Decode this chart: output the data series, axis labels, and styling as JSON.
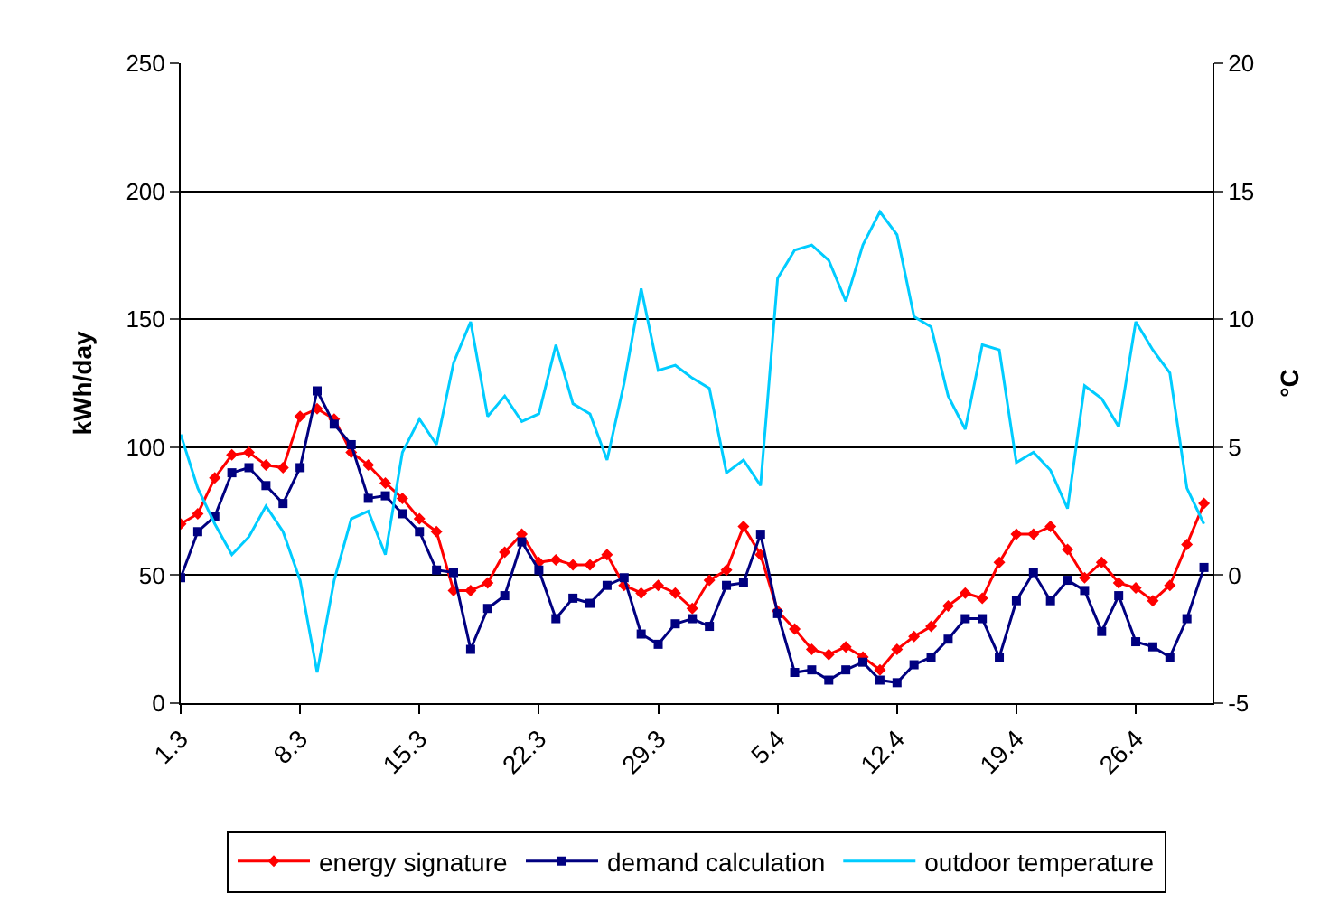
{
  "chart_data": {
    "type": "line",
    "categories": [
      "1.3",
      null,
      null,
      null,
      null,
      null,
      null,
      "8.3",
      null,
      null,
      null,
      null,
      null,
      null,
      "15.3",
      null,
      null,
      null,
      null,
      null,
      null,
      "22.3",
      null,
      null,
      null,
      null,
      null,
      null,
      "29.3",
      null,
      null,
      null,
      null,
      null,
      null,
      "5.4",
      null,
      null,
      null,
      null,
      null,
      null,
      "12.4",
      null,
      null,
      null,
      null,
      null,
      null,
      "19.4",
      null,
      null,
      null,
      null,
      null,
      null,
      "26.4",
      null,
      null,
      null,
      null
    ],
    "ylabel": "kWh/day",
    "y2label": "°C",
    "ylim": [
      0,
      250
    ],
    "yticks": [
      0,
      50,
      100,
      150,
      200,
      250
    ],
    "y2lim": [
      -5,
      20
    ],
    "y2ticks": [
      -5,
      0,
      5,
      10,
      15,
      20
    ],
    "grid": "y",
    "legend": "bottom",
    "series": [
      {
        "name": "energy signature",
        "color": "#ff0000",
        "marker": "diamond",
        "values": [
          70,
          74,
          88,
          97,
          98,
          93,
          92,
          112,
          115,
          111,
          98,
          93,
          86,
          80,
          72,
          67,
          44,
          44,
          47,
          59,
          66,
          55,
          56,
          54,
          54,
          58,
          46,
          43,
          46,
          43,
          37,
          48,
          52,
          69,
          58,
          36,
          29,
          21,
          19,
          22,
          18,
          13,
          21,
          26,
          30,
          38,
          43,
          41,
          55,
          66,
          66,
          69,
          60,
          49,
          55,
          47,
          45,
          40,
          46,
          62,
          78
        ]
      },
      {
        "name": "demand calculation",
        "color": "#000080",
        "marker": "square",
        "values": [
          49,
          67,
          73,
          90,
          92,
          85,
          78,
          92,
          122,
          109,
          101,
          80,
          81,
          74,
          67,
          52,
          51,
          21,
          37,
          42,
          63,
          52,
          33,
          41,
          39,
          46,
          49,
          27,
          23,
          31,
          33,
          30,
          46,
          47,
          66,
          35,
          12,
          13,
          9,
          13,
          16,
          9,
          8,
          15,
          18,
          25,
          33,
          33,
          18,
          40,
          51,
          40,
          48,
          44,
          28,
          42,
          24,
          22,
          18,
          33,
          53
        ]
      },
      {
        "name": "outdoor temperature",
        "color": "#00ccff",
        "marker": "none",
        "axis": "y2",
        "values": [
          5.5,
          3.4,
          2.0,
          0.8,
          1.5,
          2.7,
          1.7,
          -0.2,
          -3.8,
          -0.2,
          2.2,
          2.5,
          0.8,
          4.8,
          6.1,
          5.1,
          8.3,
          9.9,
          6.2,
          7.0,
          6.0,
          6.3,
          9.0,
          6.7,
          6.3,
          4.5,
          7.5,
          11.2,
          8.0,
          8.2,
          7.7,
          7.3,
          4.0,
          4.5,
          3.5,
          11.6,
          12.7,
          12.9,
          12.3,
          10.7,
          12.9,
          14.2,
          13.3,
          10.1,
          9.7,
          7.0,
          5.7,
          9.0,
          8.8,
          4.4,
          4.8,
          4.1,
          2.6,
          7.4,
          6.9,
          5.8,
          9.9,
          8.8,
          7.9,
          3.4,
          2.0
        ]
      }
    ]
  }
}
